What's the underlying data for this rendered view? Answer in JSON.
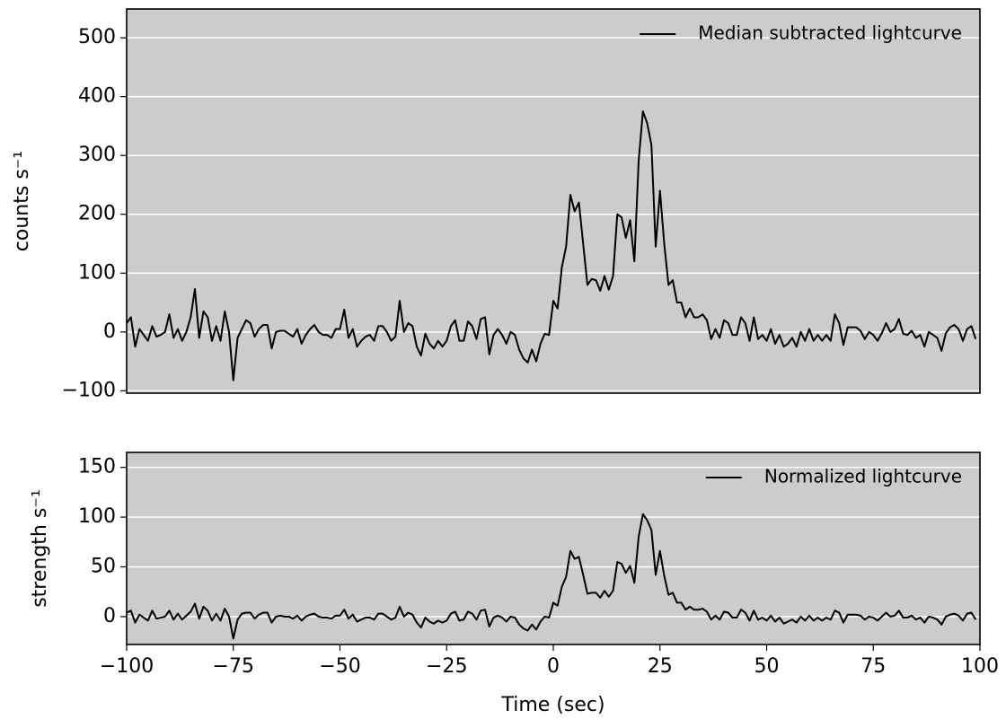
{
  "chart_data": [
    {
      "type": "line",
      "ylabel": "counts s⁻¹",
      "legend": "upper right",
      "grid": true,
      "x": [
        -100,
        -99,
        -98,
        -97,
        -96,
        -95,
        -94,
        -93,
        -92,
        -91,
        -90,
        -89,
        -88,
        -87,
        -86,
        -85,
        -84,
        -83,
        -82,
        -81,
        -80,
        -79,
        -78,
        -77,
        -76,
        -75,
        -74,
        -73,
        -72,
        -71,
        -70,
        -69,
        -68,
        -67,
        -66,
        -65,
        -64,
        -63,
        -62,
        -61,
        -60,
        -59,
        -58,
        -57,
        -56,
        -55,
        -54,
        -53,
        -52,
        -51,
        -50,
        -49,
        -48,
        -47,
        -46,
        -45,
        -44,
        -43,
        -42,
        -41,
        -40,
        -39,
        -38,
        -37,
        -36,
        -35,
        -34,
        -33,
        -32,
        -31,
        -30,
        -29,
        -28,
        -27,
        -26,
        -25,
        -24,
        -23,
        -22,
        -21,
        -20,
        -19,
        -18,
        -17,
        -16,
        -15,
        -14,
        -13,
        -12,
        -11,
        -10,
        -9,
        -8,
        -7,
        -6,
        -5,
        -4,
        -3,
        -2,
        -1,
        0,
        1,
        2,
        3,
        4,
        5,
        6,
        7,
        8,
        9,
        10,
        11,
        12,
        13,
        14,
        15,
        16,
        17,
        18,
        19,
        20,
        21,
        22,
        23,
        24,
        25,
        26,
        27,
        28,
        29,
        30,
        31,
        32,
        33,
        34,
        35,
        36,
        37,
        38,
        39,
        40,
        41,
        42,
        43,
        44,
        45,
        46,
        47,
        48,
        49,
        50,
        51,
        52,
        53,
        54,
        55,
        56,
        57,
        58,
        59,
        60,
        61,
        62,
        63,
        64,
        65,
        66,
        67,
        68,
        69,
        70,
        71,
        72,
        73,
        74,
        75,
        76,
        77,
        78,
        79,
        80,
        81,
        82,
        83,
        84,
        85,
        86,
        87,
        88,
        89,
        90,
        91,
        92,
        93,
        94,
        95,
        96,
        97,
        98,
        99
      ],
      "series": [
        {
          "name": "Median subtracted lightcurve",
          "color": "#000000",
          "values": [
            15,
            25,
            -25,
            5,
            -5,
            -15,
            10,
            -8,
            -5,
            0,
            30,
            -10,
            5,
            -15,
            0,
            25,
            73,
            -10,
            35,
            25,
            -15,
            10,
            -15,
            35,
            0,
            -82,
            -10,
            5,
            20,
            15,
            -8,
            5,
            12,
            12,
            -28,
            0,
            2,
            2,
            -3,
            -8,
            5,
            -20,
            -5,
            5,
            12,
            0,
            -5,
            -5,
            -10,
            5,
            5,
            38,
            -10,
            5,
            -25,
            -15,
            -8,
            -5,
            -15,
            10,
            10,
            0,
            -15,
            -8,
            53,
            0,
            15,
            10,
            -25,
            -40,
            -3,
            -20,
            -28,
            -15,
            -25,
            -15,
            10,
            20,
            -15,
            -15,
            18,
            10,
            -12,
            22,
            25,
            -38,
            -5,
            5,
            -5,
            -20,
            0,
            -5,
            -30,
            -45,
            -52,
            -30,
            -50,
            -20,
            -3,
            -5,
            53,
            40,
            110,
            145,
            233,
            205,
            220,
            150,
            80,
            90,
            88,
            70,
            95,
            72,
            95,
            200,
            195,
            160,
            190,
            120,
            290,
            375,
            355,
            318,
            145,
            240,
            150,
            80,
            88,
            50,
            50,
            25,
            40,
            25,
            25,
            30,
            20,
            -12,
            5,
            -10,
            20,
            15,
            -5,
            -5,
            25,
            15,
            -15,
            25,
            -12,
            -5,
            -15,
            5,
            -20,
            -5,
            -25,
            -20,
            -10,
            -25,
            0,
            -15,
            5,
            -15,
            -5,
            -15,
            -5,
            -15,
            30,
            15,
            -22,
            8,
            8,
            8,
            2,
            -12,
            0,
            -5,
            -15,
            -2,
            15,
            0,
            5,
            22,
            -3,
            -5,
            2,
            -10,
            -5,
            -25,
            0,
            -5,
            -10,
            -32,
            -2,
            8,
            12,
            5,
            -15,
            5,
            10,
            -12
          ]
        }
      ],
      "xlim": [
        -100,
        100
      ],
      "ylim": [
        -104,
        549
      ],
      "yticks": [
        {
          "value": -100,
          "label": "−100"
        },
        0,
        100,
        200,
        300,
        400,
        500
      ]
    },
    {
      "type": "line",
      "ylabel": "strength s⁻¹",
      "xlabel": "Time (sec)",
      "legend": "upper right",
      "grid": true,
      "x": [
        -100,
        -99,
        -98,
        -97,
        -96,
        -95,
        -94,
        -93,
        -92,
        -91,
        -90,
        -89,
        -88,
        -87,
        -86,
        -85,
        -84,
        -83,
        -82,
        -81,
        -80,
        -79,
        -78,
        -77,
        -76,
        -75,
        -74,
        -73,
        -72,
        -71,
        -70,
        -69,
        -68,
        -67,
        -66,
        -65,
        -64,
        -63,
        -62,
        -61,
        -60,
        -59,
        -58,
        -57,
        -56,
        -55,
        -54,
        -53,
        -52,
        -51,
        -50,
        -49,
        -48,
        -47,
        -46,
        -45,
        -44,
        -43,
        -42,
        -41,
        -40,
        -39,
        -38,
        -37,
        -36,
        -35,
        -34,
        -33,
        -32,
        -31,
        -30,
        -29,
        -28,
        -27,
        -26,
        -25,
        -24,
        -23,
        -22,
        -21,
        -20,
        -19,
        -18,
        -17,
        -16,
        -15,
        -14,
        -13,
        -12,
        -11,
        -10,
        -9,
        -8,
        -7,
        -6,
        -5,
        -4,
        -3,
        -2,
        -1,
        0,
        1,
        2,
        3,
        4,
        5,
        6,
        7,
        8,
        9,
        10,
        11,
        12,
        13,
        14,
        15,
        16,
        17,
        18,
        19,
        20,
        21,
        22,
        23,
        24,
        25,
        26,
        27,
        28,
        29,
        30,
        31,
        32,
        33,
        34,
        35,
        36,
        37,
        38,
        39,
        40,
        41,
        42,
        43,
        44,
        45,
        46,
        47,
        48,
        49,
        50,
        51,
        52,
        53,
        54,
        55,
        56,
        57,
        58,
        59,
        60,
        61,
        62,
        63,
        64,
        65,
        66,
        67,
        68,
        69,
        70,
        71,
        72,
        73,
        74,
        75,
        76,
        77,
        78,
        79,
        80,
        81,
        82,
        83,
        84,
        85,
        86,
        87,
        88,
        89,
        90,
        91,
        92,
        93,
        94,
        95,
        96,
        97,
        98,
        99
      ],
      "series": [
        {
          "name": "Normalized lightcurve",
          "color": "#000000",
          "values": [
            4,
            6,
            -6,
            2,
            -1,
            -4,
            6,
            -2,
            -1,
            0,
            6,
            -3,
            3,
            -3,
            1,
            5,
            13,
            -2,
            10,
            6,
            -4,
            3,
            -4,
            8,
            0,
            -22,
            -3,
            3,
            4,
            4,
            -2,
            2,
            4,
            4,
            -6,
            0,
            1,
            0,
            0,
            -2,
            1,
            -4,
            0,
            2,
            3,
            0,
            -1,
            -1,
            -2,
            1,
            1,
            7,
            -2,
            2,
            -5,
            -3,
            -1,
            -1,
            -3,
            3,
            3,
            0,
            -3,
            -1,
            10,
            0,
            4,
            2,
            -6,
            -11,
            -1,
            -5,
            -7,
            -4,
            -6,
            -4,
            3,
            5,
            -4,
            -3,
            5,
            3,
            -3,
            6,
            7,
            -10,
            -1,
            1,
            -1,
            -5,
            0,
            -1,
            -8,
            -12,
            -14,
            -8,
            -13,
            -5,
            0,
            -1,
            14,
            11,
            30,
            40,
            66,
            58,
            60,
            42,
            23,
            24,
            24,
            19,
            26,
            20,
            26,
            55,
            53,
            44,
            51,
            34,
            80,
            103,
            97,
            87,
            42,
            66,
            41,
            22,
            24,
            14,
            14,
            7,
            10,
            7,
            7,
            8,
            5,
            -3,
            1,
            -3,
            5,
            4,
            -1,
            -1,
            7,
            4,
            -4,
            6,
            -3,
            -1,
            -4,
            1,
            -5,
            -1,
            -7,
            -5,
            -3,
            -6,
            0,
            -4,
            1,
            -4,
            -1,
            -4,
            -1,
            -3,
            6,
            4,
            -6,
            2,
            2,
            2,
            1,
            -3,
            0,
            -1,
            -4,
            0,
            4,
            0,
            1,
            6,
            -1,
            -1,
            1,
            -3,
            -1,
            -6,
            0,
            -1,
            -3,
            -8,
            0,
            2,
            3,
            1,
            -4,
            3,
            4,
            -3
          ]
        }
      ],
      "xlim": [
        -100,
        100
      ],
      "xticks": [
        {
          "value": -100,
          "label": "−100"
        },
        {
          "value": -75,
          "label": "−75"
        },
        {
          "value": -50,
          "label": "−50"
        },
        {
          "value": -25,
          "label": "−25"
        },
        0,
        25,
        50,
        75,
        100
      ],
      "ylim": [
        -28,
        165
      ],
      "yticks": [
        0,
        50,
        100,
        150
      ]
    }
  ]
}
